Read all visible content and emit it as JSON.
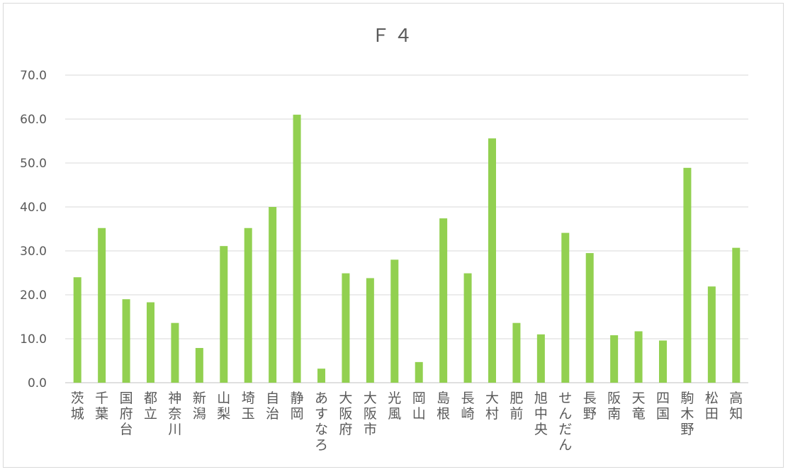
{
  "chart_data": {
    "type": "bar",
    "title": "Ｆ４",
    "xlabel": "",
    "ylabel": "",
    "ylim": [
      0,
      70
    ],
    "yticks": [
      "0.0",
      "10.0",
      "20.0",
      "30.0",
      "40.0",
      "50.0",
      "60.0",
      "70.0"
    ],
    "grid": true,
    "legend": "none",
    "bar_color": "#92d050",
    "categories": [
      "茨城",
      "千葉",
      "国府台",
      "都立",
      "神奈川",
      "新潟",
      "山梨",
      "埼玉",
      "自治",
      "静岡",
      "あすなろ",
      "大阪府",
      "大阪市",
      "光風",
      "岡山",
      "島根",
      "長崎",
      "大村",
      "肥前",
      "旭中央",
      "せんだん",
      "長野",
      "阪南",
      "天竜",
      "四国",
      "駒木野",
      "松田",
      "高知"
    ],
    "values": [
      24.0,
      35.2,
      19.0,
      18.3,
      13.6,
      7.9,
      31.1,
      35.2,
      40.0,
      61.0,
      3.2,
      24.9,
      23.8,
      28.0,
      4.7,
      37.4,
      24.9,
      55.6,
      13.6,
      11.0,
      34.1,
      29.5,
      10.8,
      11.7,
      9.6,
      48.9,
      21.9,
      30.7
    ]
  }
}
